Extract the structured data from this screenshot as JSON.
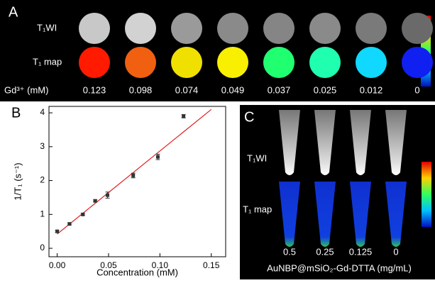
{
  "panel_a": {
    "label": "A",
    "rows": [
      "T₁WI",
      "T₁ map"
    ],
    "axis_label": "Gd³⁺ (mM)",
    "concentrations": [
      "0.123",
      "0.098",
      "0.074",
      "0.049",
      "0.037",
      "0.025",
      "0.012",
      "0"
    ]
  },
  "panel_c": {
    "label": "C",
    "rows": [
      "T₁WI",
      "T₁ map"
    ],
    "axis_label": "AuNBP@mSiO₂-Gd-DTTA (mg/mL)",
    "concentrations": [
      "0.5",
      "0.25",
      "0.125",
      "0"
    ]
  },
  "chart_data": {
    "type": "scatter",
    "label": "B",
    "x_label": "Concentration (mM)",
    "y_label": "1/T₁ (s⁻¹)",
    "x": [
      0,
      0.012,
      0.025,
      0.037,
      0.049,
      0.074,
      0.098,
      0.123
    ],
    "values": [
      0.5,
      0.72,
      1.0,
      1.4,
      1.57,
      2.15,
      2.7,
      3.9
    ],
    "errors": [
      0.03,
      0.03,
      0.03,
      0.03,
      0.09,
      0.07,
      0.08,
      0.05
    ],
    "color": "#333333",
    "fit": {
      "x": [
        0,
        0.15
      ],
      "values": [
        0.42,
        4.1
      ],
      "color": "#e02020"
    },
    "xlim": [
      -0.008,
      0.164
    ],
    "ylim": [
      -0.25,
      4.19
    ],
    "xticks": [
      {
        "value": 0,
        "label": "0.00"
      },
      {
        "value": 0.05,
        "label": "0.05"
      },
      {
        "value": 0.1,
        "label": "0.10"
      },
      {
        "value": 0.15,
        "label": "0.15"
      }
    ],
    "yticks": [
      0,
      1,
      2,
      3,
      4
    ]
  }
}
